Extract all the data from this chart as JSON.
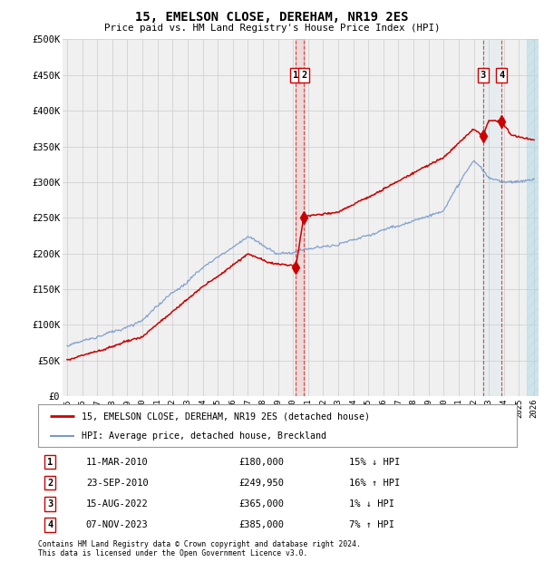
{
  "title": "15, EMELSON CLOSE, DEREHAM, NR19 2ES",
  "subtitle": "Price paid vs. HM Land Registry's House Price Index (HPI)",
  "legend_line1": "15, EMELSON CLOSE, DEREHAM, NR19 2ES (detached house)",
  "legend_line2": "HPI: Average price, detached house, Breckland",
  "footer_line1": "Contains HM Land Registry data © Crown copyright and database right 2024.",
  "footer_line2": "This data is licensed under the Open Government Licence v3.0.",
  "transactions": [
    {
      "num": 1,
      "date": "11-MAR-2010",
      "price": "£180,000",
      "hpi": "15% ↓ HPI",
      "x_year": 2010.19
    },
    {
      "num": 2,
      "date": "23-SEP-2010",
      "price": "£249,950",
      "hpi": "16% ↑ HPI",
      "x_year": 2010.72
    },
    {
      "num": 3,
      "date": "15-AUG-2022",
      "price": "£365,000",
      "hpi": "1% ↓ HPI",
      "x_year": 2022.62
    },
    {
      "num": 4,
      "date": "07-NOV-2023",
      "price": "£385,000",
      "hpi": "7% ↑ HPI",
      "x_year": 2023.85
    }
  ],
  "sale_prices_red": [
    180000,
    249950,
    365000,
    385000
  ],
  "ylim": [
    0,
    500000
  ],
  "xlim": [
    1994.7,
    2026.3
  ],
  "yticks": [
    0,
    50000,
    100000,
    150000,
    200000,
    250000,
    300000,
    350000,
    400000,
    450000,
    500000
  ],
  "ytick_labels": [
    "£0",
    "£50K",
    "£100K",
    "£150K",
    "£200K",
    "£250K",
    "£300K",
    "£350K",
    "£400K",
    "£450K",
    "£500K"
  ],
  "xticks": [
    1995,
    1996,
    1997,
    1998,
    1999,
    2000,
    2001,
    2002,
    2003,
    2004,
    2005,
    2006,
    2007,
    2008,
    2009,
    2010,
    2011,
    2012,
    2013,
    2014,
    2015,
    2016,
    2017,
    2018,
    2019,
    2020,
    2021,
    2022,
    2023,
    2024,
    2025,
    2026
  ],
  "red_color": "#cc0000",
  "blue_color": "#7799cc",
  "vline_color": "#dd4444",
  "grid_color": "#cccccc",
  "bg_color": "#ffffff",
  "plot_bg_color": "#f0f0f0"
}
